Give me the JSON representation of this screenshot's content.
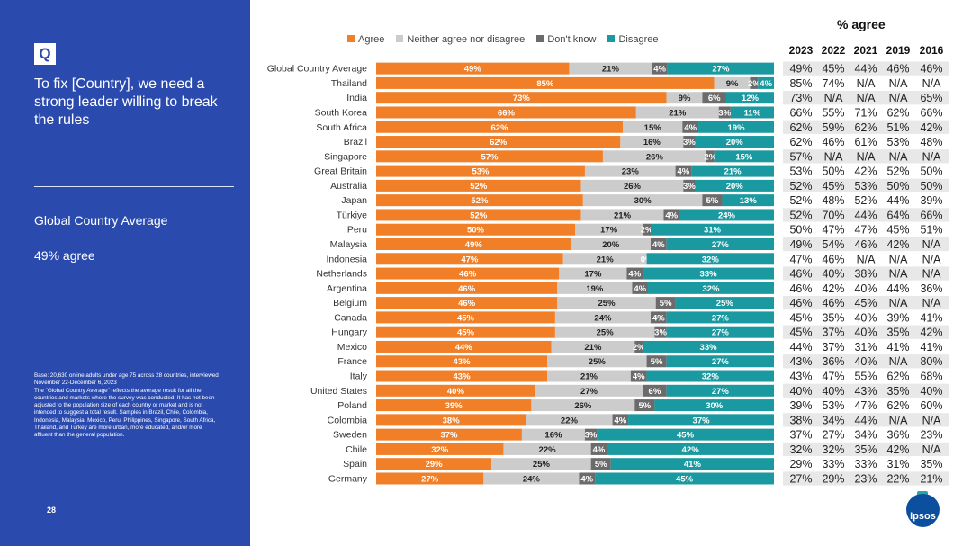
{
  "sidebar": {
    "q_label": "Q",
    "title": "To fix [Country], we need a strong leader willing to break the rules",
    "subtitle": "Global Country Average",
    "value": "49% agree",
    "note": "Base: 20,630 online adults under age 75 across 28 countries, interviewed November 22-December 6, 2023\nThe \"Global Country Average\" reflects the average result for all the countries and markets where the survey was conducted. It has not been adjusted to the population size of each country or market and is not intended to suggest a total result. Samples in Brazil, Chile, Colombia, Indonesia, Malaysia, Mexico, Peru, Philippines, Singapore, South Africa, Thailand, and Turkey are more urban, more educated, and/or more affluent than the general population.",
    "page_number": "28"
  },
  "legend": [
    {
      "label": "Agree",
      "color": "#f07f28"
    },
    {
      "label": "Neither agree nor disagree",
      "color": "#cccccc"
    },
    {
      "label": "Don't know",
      "color": "#6b6b6b"
    },
    {
      "label": "Disagree",
      "color": "#1a9aa0"
    }
  ],
  "table_title": "% agree",
  "logo_text": "Ipsos",
  "chart_data": {
    "type": "bar",
    "orientation": "horizontal",
    "stacked": true,
    "unit": "%",
    "categories": [
      "Global Country Average",
      "Thailand",
      "India",
      "South Korea",
      "South Africa",
      "Brazil",
      "Singapore",
      "Great Britain",
      "Australia",
      "Japan",
      "Türkiye",
      "Peru",
      "Malaysia",
      "Indonesia",
      "Netherlands",
      "Argentina",
      "Belgium",
      "Canada",
      "Hungary",
      "Mexico",
      "France",
      "Italy",
      "United States",
      "Poland",
      "Colombia",
      "Sweden",
      "Chile",
      "Spain",
      "Germany"
    ],
    "series": [
      {
        "name": "Agree",
        "values": [
          49,
          85,
          73,
          66,
          62,
          62,
          57,
          53,
          52,
          52,
          52,
          50,
          49,
          47,
          46,
          46,
          46,
          45,
          45,
          44,
          43,
          43,
          40,
          39,
          38,
          37,
          32,
          29,
          27
        ]
      },
      {
        "name": "Neither agree nor disagree",
        "values": [
          21,
          9,
          9,
          21,
          15,
          16,
          26,
          23,
          26,
          30,
          21,
          17,
          20,
          21,
          17,
          19,
          25,
          24,
          25,
          21,
          25,
          21,
          27,
          26,
          22,
          16,
          22,
          25,
          24
        ]
      },
      {
        "name": "Don't know",
        "values": [
          4,
          2,
          6,
          3,
          4,
          3,
          2,
          4,
          3,
          5,
          4,
          2,
          4,
          0,
          4,
          4,
          5,
          4,
          3,
          2,
          5,
          4,
          6,
          5,
          4,
          3,
          4,
          5,
          4
        ]
      },
      {
        "name": "Disagree",
        "values": [
          27,
          4,
          12,
          11,
          19,
          20,
          15,
          21,
          20,
          13,
          24,
          31,
          27,
          32,
          33,
          32,
          25,
          27,
          27,
          33,
          27,
          32,
          27,
          30,
          37,
          45,
          42,
          41,
          45
        ]
      }
    ],
    "xlim": [
      0,
      100
    ],
    "table": {
      "title": "% agree",
      "columns": [
        "2023",
        "2022",
        "2021",
        "2019",
        "2016"
      ],
      "rows": [
        [
          "49%",
          "45%",
          "44%",
          "46%",
          "46%"
        ],
        [
          "85%",
          "74%",
          "N/A",
          "N/A",
          "N/A"
        ],
        [
          "73%",
          "N/A",
          "N/A",
          "N/A",
          "65%"
        ],
        [
          "66%",
          "55%",
          "71%",
          "62%",
          "66%"
        ],
        [
          "62%",
          "59%",
          "62%",
          "51%",
          "42%"
        ],
        [
          "62%",
          "46%",
          "61%",
          "53%",
          "48%"
        ],
        [
          "57%",
          "N/A",
          "N/A",
          "N/A",
          "N/A"
        ],
        [
          "53%",
          "50%",
          "42%",
          "52%",
          "50%"
        ],
        [
          "52%",
          "45%",
          "53%",
          "50%",
          "50%"
        ],
        [
          "52%",
          "48%",
          "52%",
          "44%",
          "39%"
        ],
        [
          "52%",
          "70%",
          "44%",
          "64%",
          "66%"
        ],
        [
          "50%",
          "47%",
          "47%",
          "45%",
          "51%"
        ],
        [
          "49%",
          "54%",
          "46%",
          "42%",
          "N/A"
        ],
        [
          "47%",
          "46%",
          "N/A",
          "N/A",
          "N/A"
        ],
        [
          "46%",
          "40%",
          "38%",
          "N/A",
          "N/A"
        ],
        [
          "46%",
          "42%",
          "40%",
          "44%",
          "36%"
        ],
        [
          "46%",
          "46%",
          "45%",
          "N/A",
          "N/A"
        ],
        [
          "45%",
          "35%",
          "40%",
          "39%",
          "41%"
        ],
        [
          "45%",
          "37%",
          "40%",
          "35%",
          "42%"
        ],
        [
          "44%",
          "37%",
          "31%",
          "41%",
          "41%"
        ],
        [
          "43%",
          "36%",
          "40%",
          "N/A",
          "80%"
        ],
        [
          "43%",
          "47%",
          "55%",
          "62%",
          "68%"
        ],
        [
          "40%",
          "40%",
          "43%",
          "35%",
          "40%"
        ],
        [
          "39%",
          "53%",
          "47%",
          "62%",
          "60%"
        ],
        [
          "38%",
          "34%",
          "44%",
          "N/A",
          "N/A"
        ],
        [
          "37%",
          "27%",
          "34%",
          "36%",
          "23%"
        ],
        [
          "32%",
          "32%",
          "35%",
          "42%",
          "N/A"
        ],
        [
          "29%",
          "33%",
          "33%",
          "31%",
          "35%"
        ],
        [
          "27%",
          "29%",
          "23%",
          "22%",
          "21%"
        ]
      ]
    }
  }
}
